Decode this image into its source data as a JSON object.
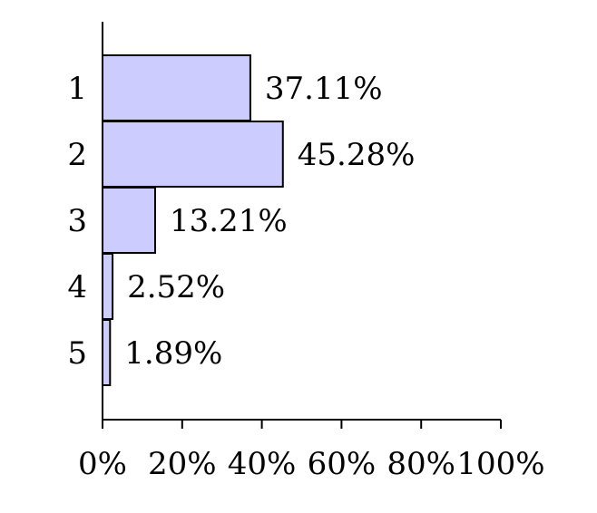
{
  "chart_data": {
    "type": "bar",
    "orientation": "horizontal",
    "categories": [
      "1",
      "2",
      "3",
      "4",
      "5"
    ],
    "values": [
      37.11,
      45.28,
      13.21,
      2.52,
      1.89
    ],
    "data_labels": [
      "37.11%",
      "45.28%",
      "13.21%",
      "2.52%",
      "1.89%"
    ],
    "title": "",
    "xlabel": "",
    "ylabel": "",
    "xlim": [
      0,
      100
    ],
    "x_ticks": [
      0,
      20,
      40,
      60,
      80,
      100
    ],
    "x_tick_labels": [
      "0%",
      "20%",
      "40%",
      "60%",
      "80%",
      "100%"
    ],
    "grid": false,
    "legend": "none",
    "bar_color": "#ccccff",
    "bar_edge_color": "#000000"
  }
}
